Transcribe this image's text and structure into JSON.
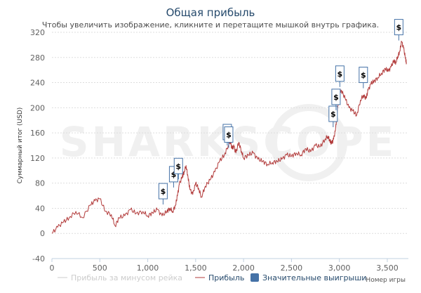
{
  "chart_data": {
    "type": "line",
    "title": "Общая прибыль",
    "subtitle": "Чтобы увеличить изображение, кликните и перетащите мышкой внутрь графика.",
    "ylabel": "Суммарный итог (USD)",
    "xlabel": "Номер игры",
    "watermark": "SHARKSCOPE",
    "xlim": [
      0,
      3720
    ],
    "ylim": [
      -40,
      320
    ],
    "xticks": [
      0,
      500,
      1000,
      1500,
      2000,
      2500,
      3000,
      3500
    ],
    "xtick_labels": [
      "0",
      "500",
      "1,000",
      "1,500",
      "2,000",
      "2,500",
      "3,000",
      "3,500"
    ],
    "yticks": [
      -40,
      0,
      40,
      80,
      120,
      160,
      200,
      240,
      280,
      320
    ],
    "ytick_labels": [
      "-40",
      "0",
      "40",
      "80",
      "120",
      "160",
      "200",
      "240",
      "280",
      "320"
    ],
    "grid": true,
    "legend_position": "bottom-right",
    "series": [
      {
        "name": "Прибыль за минусом рейка",
        "color": "#cccccc",
        "visible": false,
        "x": [],
        "y": []
      },
      {
        "name": "Прибыль",
        "color": "#b23b3b",
        "visible": true,
        "x": [
          0,
          60,
          120,
          180,
          250,
          320,
          400,
          450,
          500,
          560,
          620,
          660,
          700,
          760,
          820,
          880,
          950,
          1000,
          1050,
          1100,
          1150,
          1200,
          1230,
          1260,
          1290,
          1310,
          1330,
          1360,
          1380,
          1400,
          1420,
          1440,
          1470,
          1500,
          1530,
          1560,
          1600,
          1650,
          1700,
          1750,
          1800,
          1840,
          1860,
          1880,
          1900,
          1920,
          1950,
          1980,
          2000,
          2050,
          2100,
          2150,
          2200,
          2250,
          2300,
          2350,
          2400,
          2450,
          2500,
          2550,
          2600,
          2650,
          2700,
          2750,
          2800,
          2850,
          2880,
          2900,
          2920,
          2940,
          2960,
          2980,
          3000,
          3020,
          3060,
          3100,
          3140,
          3180,
          3220,
          3250,
          3280,
          3300,
          3330,
          3360,
          3400,
          3440,
          3480,
          3510,
          3540,
          3570,
          3590,
          3610,
          3630,
          3650,
          3670,
          3690,
          3700
        ],
        "y": [
          0,
          10,
          18,
          25,
          35,
          25,
          45,
          52,
          55,
          35,
          30,
          12,
          25,
          28,
          38,
          32,
          35,
          28,
          33,
          38,
          28,
          35,
          40,
          35,
          45,
          60,
          78,
          90,
          98,
          108,
          90,
          70,
          62,
          80,
          72,
          58,
          75,
          85,
          98,
          115,
          125,
          140,
          148,
          135,
          138,
          128,
          145,
          130,
          120,
          125,
          128,
          118,
          115,
          110,
          113,
          115,
          118,
          125,
          123,
          128,
          125,
          135,
          130,
          140,
          138,
          150,
          155,
          148,
          143,
          150,
          165,
          198,
          225,
          228,
          215,
          200,
          195,
          188,
          212,
          220,
          215,
          228,
          238,
          242,
          248,
          255,
          262,
          258,
          265,
          275,
          272,
          282,
          290,
          305,
          295,
          278,
          272
        ]
      }
    ],
    "significant_wins_label": "Значительные выигрыши",
    "significant_wins": [
      {
        "x": 1160,
        "y": 55
      },
      {
        "x": 1270,
        "y": 82
      },
      {
        "x": 1320,
        "y": 95
      },
      {
        "x": 1830,
        "y": 149
      },
      {
        "x": 1845,
        "y": 145
      },
      {
        "x": 2935,
        "y": 178
      },
      {
        "x": 2965,
        "y": 205
      },
      {
        "x": 3005,
        "y": 242
      },
      {
        "x": 3250,
        "y": 240
      },
      {
        "x": 3620,
        "y": 316
      }
    ],
    "win_icon": "$",
    "colors": {
      "line": "#b23b3b",
      "grid": "#dddddd",
      "axis_text": "#606060",
      "title": "#274b6d",
      "legend_box": "#4572a7",
      "flag_border": "#4572a7",
      "watermark": "#f0f0f0"
    }
  }
}
